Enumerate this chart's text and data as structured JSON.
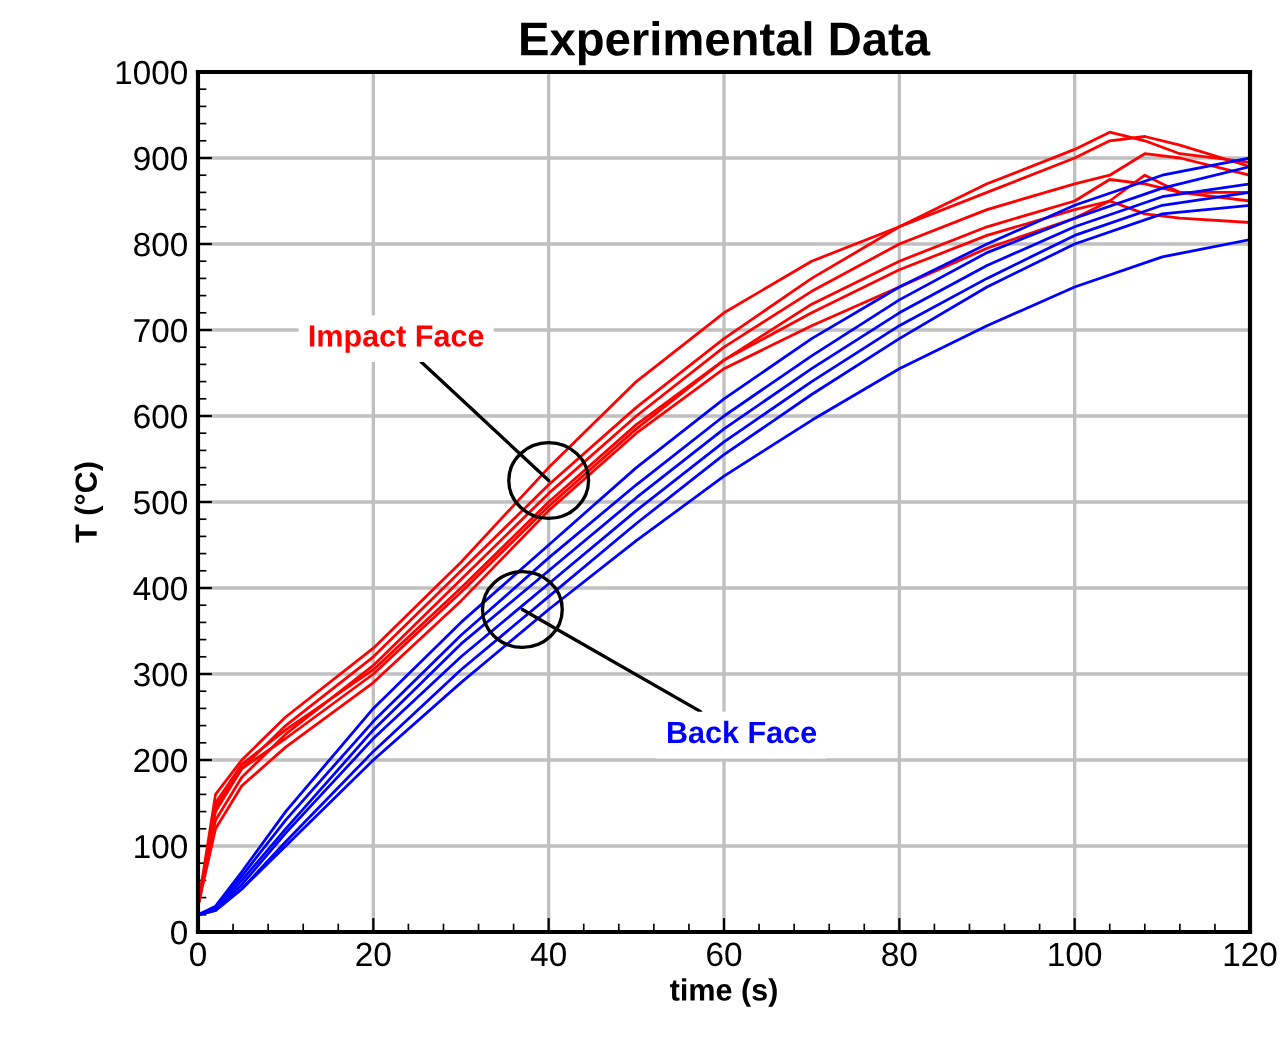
{
  "chart_data": {
    "type": "line",
    "title": "Experimental Data",
    "xlabel": "time (s)",
    "ylabel": "T (°C)",
    "xlim": [
      0,
      120
    ],
    "ylim": [
      0,
      1000
    ],
    "xticks": [
      0,
      20,
      40,
      60,
      80,
      100,
      120
    ],
    "yticks": [
      0,
      100,
      200,
      300,
      400,
      500,
      600,
      700,
      800,
      900,
      1000
    ],
    "grid": true,
    "line_style": "solid",
    "marker": "none",
    "series": [
      {
        "color": "#ff0000",
        "x": [
          0,
          2,
          5,
          10,
          20,
          30,
          40,
          50,
          60,
          70,
          80,
          90,
          100,
          104,
          108,
          112,
          120
        ],
        "values": [
          30,
          160,
          200,
          250,
          330,
          430,
          540,
          640,
          720,
          780,
          820,
          860,
          900,
          920,
          925,
          915,
          890
        ]
      },
      {
        "color": "#ff0000",
        "x": [
          0,
          2,
          5,
          10,
          20,
          30,
          40,
          50,
          60,
          70,
          80,
          90,
          100,
          104,
          108,
          112,
          120
        ],
        "values": [
          30,
          140,
          190,
          240,
          320,
          420,
          520,
          610,
          690,
          760,
          820,
          870,
          910,
          930,
          920,
          905,
          895
        ]
      },
      {
        "color": "#ff0000",
        "x": [
          0,
          2,
          5,
          10,
          20,
          30,
          40,
          50,
          60,
          70,
          80,
          90,
          100,
          104,
          108,
          112,
          120
        ],
        "values": [
          30,
          130,
          180,
          230,
          310,
          410,
          510,
          600,
          680,
          745,
          800,
          840,
          870,
          880,
          905,
          900,
          880
        ]
      },
      {
        "color": "#ff0000",
        "x": [
          0,
          2,
          5,
          10,
          20,
          30,
          40,
          50,
          60,
          70,
          80,
          90,
          100,
          104,
          108,
          112,
          120
        ],
        "values": [
          30,
          150,
          195,
          235,
          305,
          400,
          500,
          590,
          665,
          720,
          770,
          810,
          840,
          850,
          880,
          860,
          850
        ]
      },
      {
        "color": "#ff0000",
        "x": [
          0,
          2,
          5,
          10,
          20,
          30,
          40,
          50,
          60,
          70,
          80,
          90,
          100,
          104,
          108,
          112,
          120
        ],
        "values": [
          30,
          120,
          170,
          215,
          290,
          385,
          490,
          580,
          655,
          705,
          750,
          795,
          830,
          850,
          835,
          830,
          825
        ]
      },
      {
        "color": "#ff0000",
        "x": [
          0,
          2,
          5,
          10,
          20,
          30,
          40,
          50,
          60,
          70,
          80,
          90,
          100,
          104,
          108,
          112,
          120
        ],
        "values": [
          30,
          145,
          190,
          225,
          300,
          395,
          495,
          585,
          665,
          730,
          780,
          820,
          850,
          875,
          870,
          860,
          860
        ]
      },
      {
        "color": "#0000ff",
        "x": [
          0,
          2,
          5,
          10,
          20,
          30,
          40,
          50,
          60,
          70,
          80,
          90,
          100,
          110,
          120
        ],
        "values": [
          20,
          30,
          70,
          140,
          260,
          360,
          450,
          540,
          620,
          690,
          750,
          800,
          845,
          880,
          900
        ]
      },
      {
        "color": "#0000ff",
        "x": [
          0,
          2,
          5,
          10,
          20,
          30,
          40,
          50,
          60,
          70,
          80,
          90,
          100,
          110,
          120
        ],
        "values": [
          20,
          28,
          65,
          130,
          245,
          345,
          435,
          520,
          600,
          670,
          735,
          790,
          830,
          865,
          890
        ]
      },
      {
        "color": "#0000ff",
        "x": [
          0,
          2,
          5,
          10,
          20,
          30,
          40,
          50,
          60,
          70,
          80,
          90,
          100,
          110,
          120
        ],
        "values": [
          20,
          27,
          60,
          120,
          235,
          335,
          420,
          505,
          585,
          655,
          720,
          775,
          820,
          855,
          870
        ]
      },
      {
        "color": "#0000ff",
        "x": [
          0,
          2,
          5,
          10,
          20,
          30,
          40,
          50,
          60,
          70,
          80,
          90,
          100,
          110,
          120
        ],
        "values": [
          20,
          26,
          55,
          115,
          225,
          320,
          405,
          490,
          570,
          640,
          705,
          760,
          810,
          845,
          860
        ]
      },
      {
        "color": "#0000ff",
        "x": [
          0,
          2,
          5,
          10,
          20,
          30,
          40,
          50,
          60,
          70,
          80,
          90,
          100,
          110,
          120
        ],
        "values": [
          20,
          25,
          50,
          105,
          210,
          305,
          390,
          475,
          555,
          625,
          690,
          750,
          800,
          835,
          845
        ]
      },
      {
        "color": "#0000ff",
        "x": [
          0,
          2,
          5,
          10,
          20,
          30,
          40,
          50,
          60,
          70,
          80,
          90,
          100,
          110,
          120
        ],
        "values": [
          20,
          25,
          50,
          100,
          200,
          290,
          375,
          455,
          530,
          595,
          655,
          705,
          750,
          785,
          805
        ]
      }
    ],
    "annotations": [
      {
        "text": "Impact Face",
        "x": 40,
        "y": 525
      },
      {
        "text": "Back Face",
        "x": 37,
        "y": 375
      }
    ]
  }
}
